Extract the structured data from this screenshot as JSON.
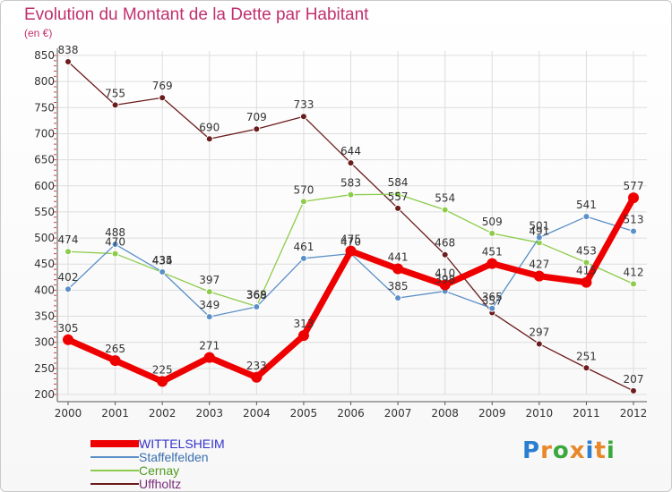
{
  "title": "Evolution du Montant de la Dette par Habitant",
  "unit_label": "(en €)",
  "logo_text": "Proxiti",
  "colors": {
    "title": "#c0306e",
    "WITTELSHEIM": "#ee0000",
    "Staffelfelden": "#5a8fc7",
    "Cernay": "#8ccc4a",
    "Uffholtz": "#6b1c1c"
  },
  "chart_data": {
    "type": "line",
    "title": "Evolution du Montant de la Dette par Habitant",
    "ylabel": "(en €)",
    "xlabel": "",
    "x": [
      "2000",
      "2001",
      "2002",
      "2003",
      "2004",
      "2005",
      "2006",
      "2007",
      "2008",
      "2009",
      "2010",
      "2011",
      "2012"
    ],
    "ylim": [
      200,
      850
    ],
    "yticks": [
      200,
      250,
      300,
      350,
      400,
      450,
      500,
      550,
      600,
      650,
      700,
      750,
      800,
      850
    ],
    "grid": true,
    "legend_position": "bottom-left",
    "series": [
      {
        "name": "WITTELSHEIM",
        "values": [
          305,
          265,
          225,
          271,
          233,
          313,
          475,
          441,
          410,
          451,
          427,
          415,
          577
        ]
      },
      {
        "name": "Staffelfelden",
        "values": [
          402,
          488,
          435,
          349,
          368,
          461,
          470,
          385,
          398,
          365,
          501,
          541,
          513
        ]
      },
      {
        "name": "Cernay",
        "values": [
          474,
          470,
          434,
          397,
          369,
          570,
          583,
          584,
          554,
          509,
          491,
          453,
          412
        ]
      },
      {
        "name": "Uffholtz",
        "values": [
          838,
          755,
          769,
          690,
          709,
          733,
          644,
          557,
          468,
          357,
          297,
          251,
          207
        ]
      }
    ]
  }
}
